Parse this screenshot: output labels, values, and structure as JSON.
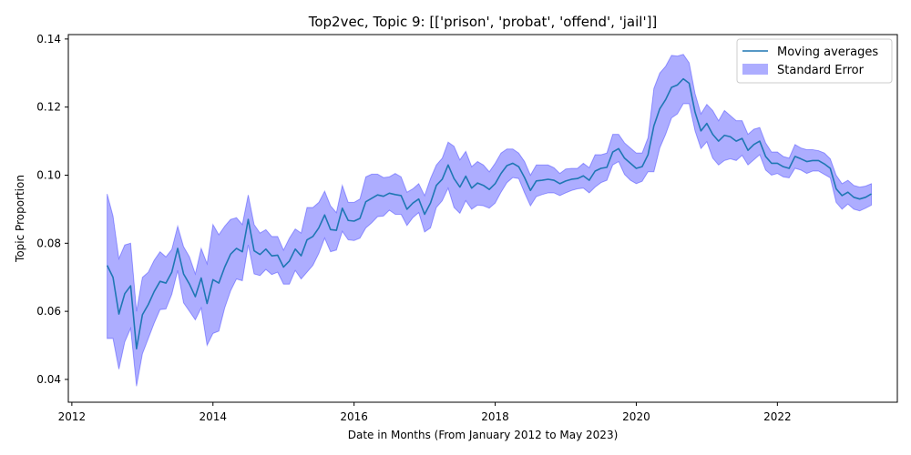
{
  "chart_data": {
    "type": "line",
    "title": "Top2vec, Topic 9: [['prison', 'probat', 'offend', 'jail']]",
    "xlabel": "Date in Months (From January 2012 to May 2023)",
    "ylabel": "Topic Proportion",
    "xlim": [
      2011.95,
      2023.7
    ],
    "ylim": [
      0.0333,
      0.1413
    ],
    "xticks": [
      2012,
      2014,
      2016,
      2018,
      2020,
      2022
    ],
    "yticks": [
      0.04,
      0.06,
      0.08,
      0.1,
      0.12,
      0.14
    ],
    "ytick_labels": [
      "0.04",
      "0.06",
      "0.08",
      "0.10",
      "0.12",
      "0.14"
    ],
    "grid": false,
    "legend_position": "top-right",
    "colors": {
      "line": "#1f77b4",
      "band": "#0000ff",
      "band_alpha": 0.32
    },
    "x_start": 2012.5,
    "x_step": 0.08333,
    "series": [
      {
        "name": "Moving averages",
        "values": [
          0.0735,
          0.07,
          0.0592,
          0.0652,
          0.0675,
          0.049,
          0.059,
          0.062,
          0.0658,
          0.0688,
          0.0683,
          0.0715,
          0.0785,
          0.071,
          0.068,
          0.0643,
          0.0698,
          0.0623,
          0.0693,
          0.0683,
          0.073,
          0.0768,
          0.0785,
          0.0775,
          0.087,
          0.0778,
          0.0767,
          0.0783,
          0.0763,
          0.0765,
          0.073,
          0.0748,
          0.0783,
          0.0763,
          0.081,
          0.082,
          0.0845,
          0.0883,
          0.084,
          0.0838,
          0.0903,
          0.0867,
          0.0865,
          0.0873,
          0.0922,
          0.0932,
          0.0942,
          0.0938,
          0.0947,
          0.0943,
          0.094,
          0.09,
          0.0918,
          0.093,
          0.0885,
          0.0918,
          0.097,
          0.0988,
          0.103,
          0.099,
          0.0965,
          0.0997,
          0.0962,
          0.0977,
          0.097,
          0.0958,
          0.0975,
          0.1005,
          0.1028,
          0.1035,
          0.1025,
          0.0993,
          0.0955,
          0.0983,
          0.0985,
          0.0988,
          0.0985,
          0.0975,
          0.0983,
          0.0988,
          0.099,
          0.0998,
          0.0985,
          0.1012,
          0.102,
          0.1023,
          0.1068,
          0.1078,
          0.105,
          0.1035,
          0.102,
          0.1025,
          0.106,
          0.1145,
          0.1195,
          0.1222,
          0.1258,
          0.1265,
          0.1283,
          0.127,
          0.1185,
          0.113,
          0.1152,
          0.112,
          0.11,
          0.1117,
          0.1113,
          0.11,
          0.1108,
          0.1073,
          0.109,
          0.11,
          0.1055,
          0.1035,
          0.1035,
          0.1025,
          0.102,
          0.1055,
          0.1048,
          0.104,
          0.1043,
          0.1043,
          0.1033,
          0.102,
          0.096,
          0.094,
          0.095,
          0.0935,
          0.093,
          0.0935,
          0.0945
        ]
      }
    ],
    "band": {
      "name": "Standard Error",
      "upper": [
        0.0945,
        0.088,
        0.0755,
        0.0795,
        0.08,
        0.06,
        0.07,
        0.0715,
        0.075,
        0.0775,
        0.076,
        0.0782,
        0.085,
        0.079,
        0.076,
        0.071,
        0.0785,
        0.074,
        0.0855,
        0.0825,
        0.085,
        0.087,
        0.0875,
        0.0855,
        0.0942,
        0.0855,
        0.083,
        0.084,
        0.082,
        0.082,
        0.078,
        0.0815,
        0.0842,
        0.083,
        0.0905,
        0.0905,
        0.092,
        0.0953,
        0.091,
        0.089,
        0.097,
        0.092,
        0.092,
        0.093,
        0.0995,
        0.1003,
        0.1003,
        0.0993,
        0.0995,
        0.1005,
        0.0995,
        0.095,
        0.096,
        0.0975,
        0.094,
        0.099,
        0.103,
        0.105,
        0.1097,
        0.1085,
        0.1045,
        0.107,
        0.1025,
        0.104,
        0.103,
        0.101,
        0.1035,
        0.1065,
        0.1077,
        0.1077,
        0.1065,
        0.104,
        0.1,
        0.103,
        0.103,
        0.103,
        0.1022,
        0.1005,
        0.1018,
        0.102,
        0.102,
        0.1035,
        0.1022,
        0.106,
        0.106,
        0.1065,
        0.112,
        0.112,
        0.1095,
        0.108,
        0.1065,
        0.1065,
        0.111,
        0.1255,
        0.13,
        0.132,
        0.1352,
        0.135,
        0.1355,
        0.133,
        0.124,
        0.118,
        0.1208,
        0.119,
        0.116,
        0.119,
        0.1175,
        0.116,
        0.116,
        0.112,
        0.1135,
        0.114,
        0.1095,
        0.1068,
        0.1068,
        0.1055,
        0.105,
        0.109,
        0.108,
        0.1075,
        0.1075,
        0.1072,
        0.1065,
        0.1048,
        0.1,
        0.0975,
        0.0985,
        0.097,
        0.0965,
        0.0968,
        0.0975
      ],
      "lower": [
        0.052,
        0.052,
        0.043,
        0.051,
        0.055,
        0.038,
        0.0475,
        0.052,
        0.0565,
        0.0605,
        0.0607,
        0.065,
        0.072,
        0.0625,
        0.06,
        0.0575,
        0.061,
        0.05,
        0.0535,
        0.0542,
        0.061,
        0.066,
        0.0695,
        0.069,
        0.0795,
        0.071,
        0.0705,
        0.0723,
        0.0708,
        0.0715,
        0.068,
        0.068,
        0.072,
        0.0695,
        0.0715,
        0.0735,
        0.077,
        0.0815,
        0.0775,
        0.078,
        0.0835,
        0.081,
        0.0808,
        0.0815,
        0.0845,
        0.086,
        0.0878,
        0.088,
        0.0897,
        0.0885,
        0.0885,
        0.0852,
        0.0875,
        0.089,
        0.0833,
        0.0845,
        0.0905,
        0.0925,
        0.0962,
        0.0905,
        0.0888,
        0.0925,
        0.09,
        0.0912,
        0.091,
        0.0903,
        0.0918,
        0.095,
        0.0978,
        0.0993,
        0.099,
        0.0948,
        0.091,
        0.0937,
        0.0943,
        0.0948,
        0.0948,
        0.094,
        0.0948,
        0.0955,
        0.096,
        0.0962,
        0.0948,
        0.0965,
        0.0978,
        0.0985,
        0.103,
        0.104,
        0.1002,
        0.0985,
        0.0975,
        0.0982,
        0.101,
        0.101,
        0.108,
        0.112,
        0.1168,
        0.118,
        0.121,
        0.121,
        0.113,
        0.1078,
        0.1098,
        0.105,
        0.103,
        0.1043,
        0.1048,
        0.1043,
        0.1058,
        0.103,
        0.1045,
        0.106,
        0.1015,
        0.1,
        0.1005,
        0.0995,
        0.0992,
        0.102,
        0.1015,
        0.1005,
        0.1012,
        0.1012,
        0.1002,
        0.0992,
        0.092,
        0.09,
        0.0915,
        0.09,
        0.0895,
        0.0903,
        0.0912
      ]
    }
  }
}
